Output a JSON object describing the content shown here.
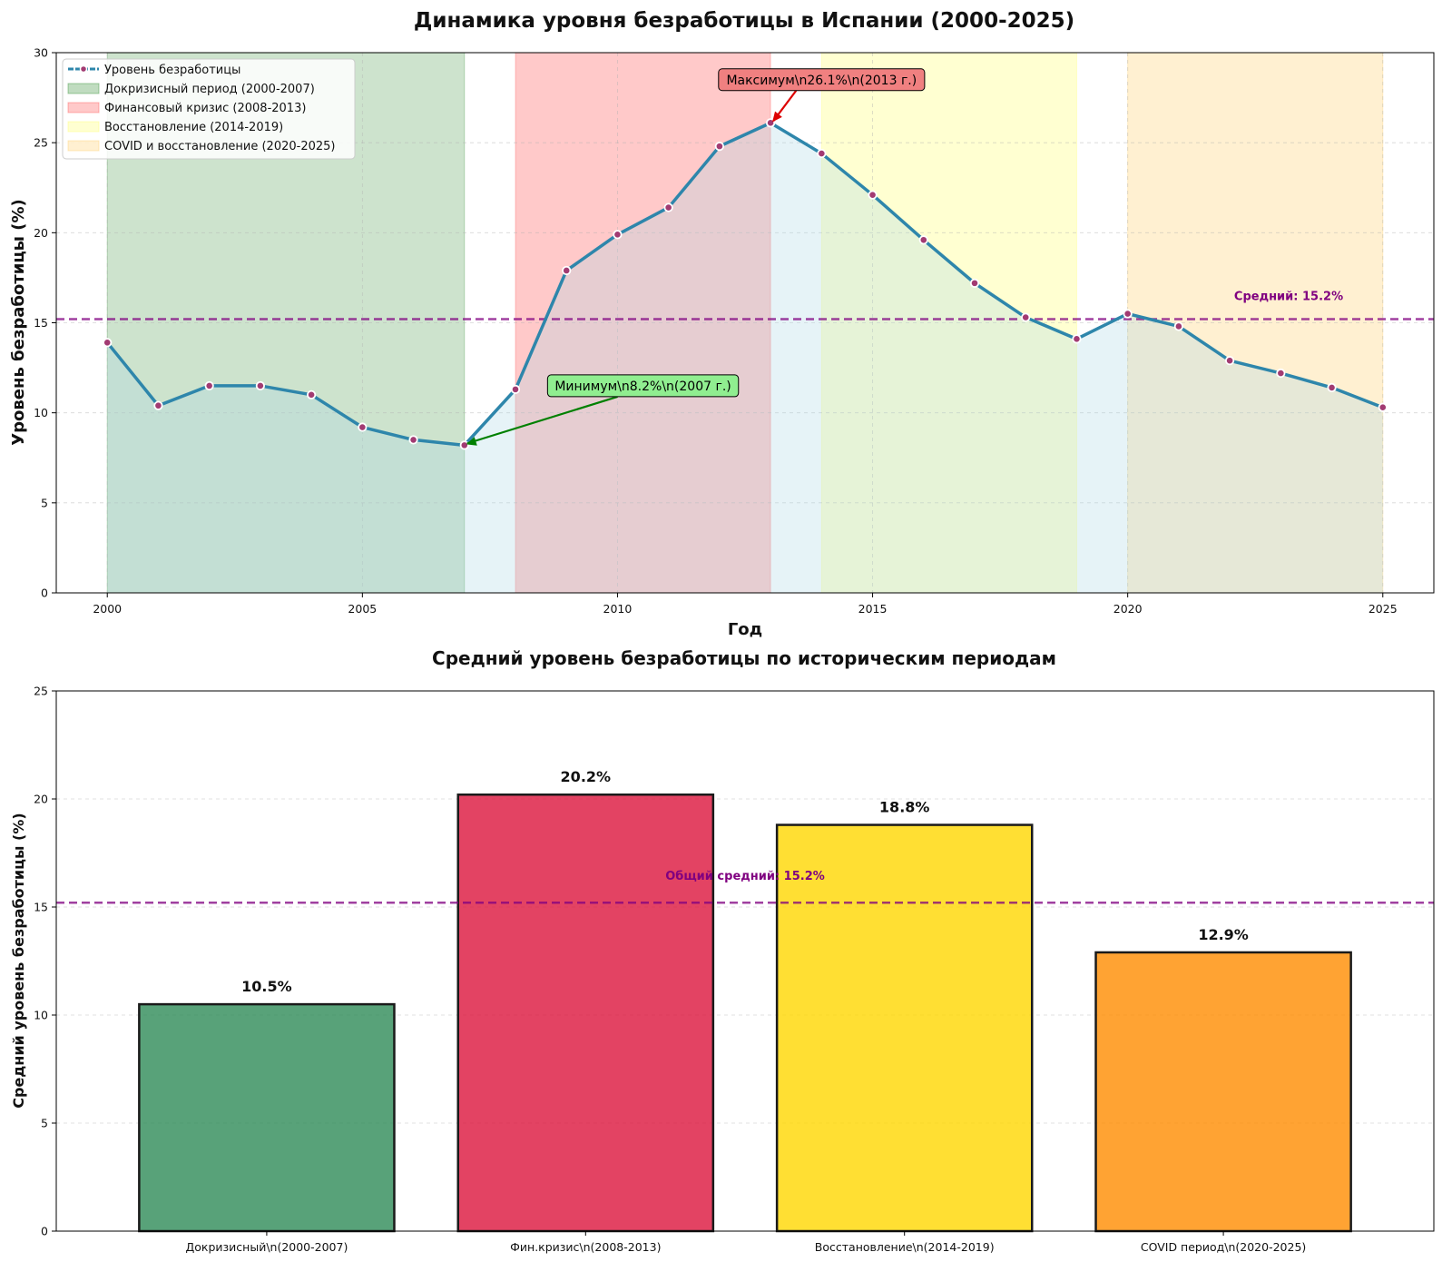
{
  "chart_data": [
    {
      "type": "line",
      "title": "Динамика уровня безработицы в Испании (2000-2025)",
      "xlabel": "Год",
      "ylabel": "Уровень безработицы (%)",
      "xlim": [
        1999,
        2026
      ],
      "ylim": [
        0,
        30
      ],
      "xticks": [
        2000,
        2005,
        2010,
        2015,
        2020,
        2025
      ],
      "yticks": [
        0,
        5,
        10,
        15,
        20,
        25,
        30
      ],
      "grid": true,
      "legend_position": "top-left",
      "series": [
        {
          "name": "Уровень безработицы",
          "color": "#2e86ab",
          "marker_color": "#a23b72",
          "x": [
            2000,
            2001,
            2002,
            2003,
            2004,
            2005,
            2006,
            2007,
            2008,
            2009,
            2010,
            2011,
            2012,
            2013,
            2014,
            2015,
            2016,
            2017,
            2018,
            2019,
            2020,
            2021,
            2022,
            2023,
            2024,
            2025
          ],
          "values": [
            13.9,
            10.4,
            11.5,
            11.5,
            11.0,
            9.2,
            8.5,
            8.2,
            11.3,
            17.9,
            19.9,
            21.4,
            24.8,
            26.1,
            24.4,
            22.1,
            19.6,
            17.2,
            15.3,
            14.1,
            15.5,
            14.8,
            12.9,
            12.2,
            11.4,
            10.3
          ]
        }
      ],
      "periods": [
        {
          "label": "Докризисный период (2000-2007)",
          "start": 2000,
          "end": 2007,
          "color": "#2e8b2e"
        },
        {
          "label": "Финансовый кризис (2008-2013)",
          "start": 2008,
          "end": 2013,
          "color": "#ff4d4d"
        },
        {
          "label": "Восстановление (2014-2019)",
          "start": 2014,
          "end": 2019,
          "color": "#ffff66"
        },
        {
          "label": "COVID и восстановление (2020-2025)",
          "start": 2020,
          "end": 2025,
          "color": "#ffcc66"
        }
      ],
      "average": {
        "value": 15.2,
        "label": "Средний: 15.2%",
        "color": "#800080"
      },
      "annotations": [
        {
          "kind": "max",
          "text": "Максимум\\n26.1%\\n(2013 г.)",
          "x": 2013,
          "y": 26.1,
          "box_color": "#f08080",
          "arrow_color": "#dd0000"
        },
        {
          "kind": "min",
          "text": "Минимум\\n8.2%\\n(2007 г.)",
          "x": 2007,
          "y": 8.2,
          "box_color": "#90ee90",
          "arrow_color": "#008000"
        }
      ]
    },
    {
      "type": "bar",
      "title": "Средний уровень безработицы по историческим периодам",
      "xlabel": "",
      "ylabel": "Средний уровень безработицы (%)",
      "ylim": [
        0,
        25
      ],
      "yticks": [
        0,
        5,
        10,
        15,
        20,
        25
      ],
      "grid": true,
      "categories": [
        "Докризисный\\n(2000-2007)",
        "Фин.кризис\\n(2008-2013)",
        "Восстановление\\n(2014-2019)",
        "COVID период\\n(2020-2025)"
      ],
      "values": [
        10.5,
        20.2,
        18.8,
        12.9
      ],
      "value_labels": [
        "10.5%",
        "20.2%",
        "18.8%",
        "12.9%"
      ],
      "colors": [
        "#2e8b57",
        "#dc143c",
        "#ffd700",
        "#ff8c00"
      ],
      "average": {
        "value": 15.2,
        "label": "Общий средний: 15.2%",
        "color": "#800080"
      }
    }
  ]
}
